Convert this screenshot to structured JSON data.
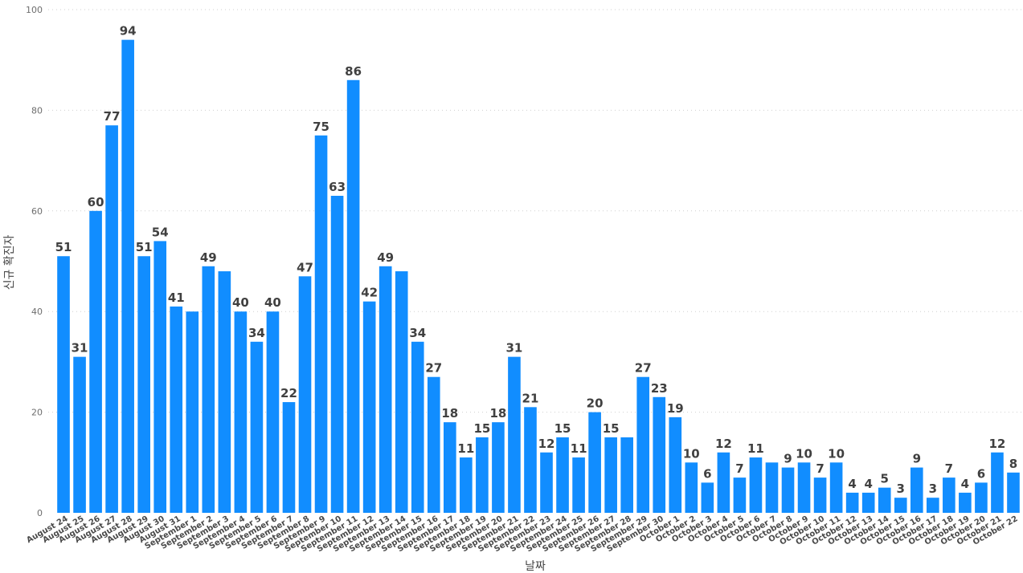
{
  "chart_data": {
    "type": "bar",
    "xlabel": "날짜",
    "ylabel": "신규 확진자",
    "ylim": [
      0,
      100
    ],
    "yticks": [
      0,
      20,
      40,
      60,
      80,
      100
    ],
    "grid": "horizontal dotted",
    "bar_color": "#118DFF",
    "categories": [
      "August 24",
      "August 25",
      "August 26",
      "August 27",
      "August 28",
      "August 29",
      "August 30",
      "August 31",
      "September 1",
      "September 2",
      "September 3",
      "September 4",
      "September 5",
      "September 6",
      "September 7",
      "September 8",
      "September 9",
      "September 10",
      "September 11",
      "September 12",
      "September 13",
      "September 14",
      "September 15",
      "September 16",
      "September 17",
      "September 18",
      "September 19",
      "September 20",
      "September 21",
      "September 22",
      "September 23",
      "September 24",
      "September 25",
      "September 26",
      "September 27",
      "September 28",
      "September 29",
      "September 30",
      "October 1",
      "October 2",
      "October 3",
      "October 4",
      "October 5",
      "October 6",
      "October 7",
      "October 8",
      "October 9",
      "October 10",
      "October 11",
      "October 12",
      "October 13",
      "October 14",
      "October 15",
      "October 16",
      "October 17",
      "October 18",
      "October 19",
      "October 20",
      "October 21",
      "October 22"
    ],
    "values": [
      51,
      31,
      60,
      77,
      94,
      51,
      54,
      41,
      40,
      49,
      48,
      40,
      34,
      40,
      22,
      47,
      75,
      63,
      86,
      42,
      49,
      48,
      34,
      27,
      18,
      11,
      15,
      18,
      31,
      21,
      12,
      15,
      11,
      20,
      15,
      15,
      27,
      23,
      19,
      10,
      6,
      12,
      7,
      11,
      10,
      9,
      10,
      7,
      10,
      4,
      4,
      5,
      3,
      9,
      3,
      7,
      4,
      6,
      12,
      8
    ],
    "labeled": [
      true,
      true,
      true,
      true,
      true,
      true,
      true,
      true,
      false,
      true,
      false,
      true,
      true,
      true,
      true,
      true,
      true,
      true,
      true,
      true,
      true,
      false,
      true,
      true,
      true,
      true,
      true,
      true,
      true,
      true,
      true,
      true,
      true,
      true,
      true,
      false,
      true,
      true,
      true,
      true,
      true,
      true,
      true,
      true,
      false,
      true,
      true,
      true,
      true,
      true,
      true,
      true,
      true,
      true,
      true,
      true,
      true,
      true,
      true,
      true
    ]
  }
}
